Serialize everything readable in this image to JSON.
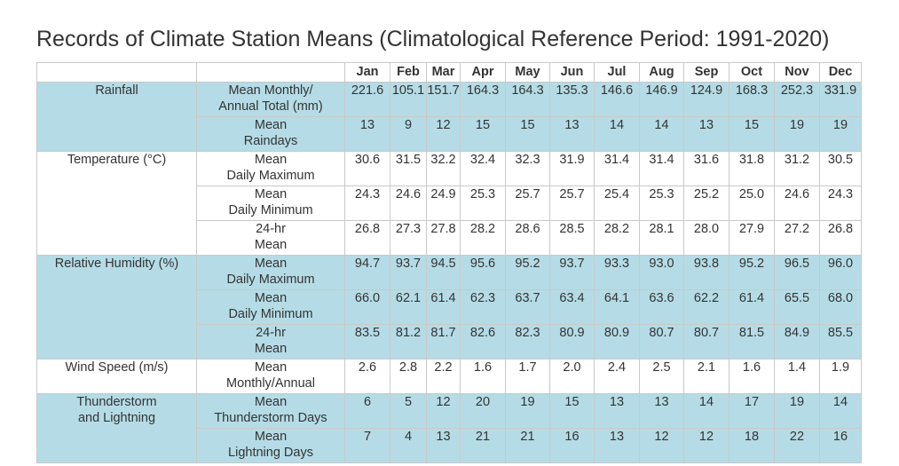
{
  "title": "Records of Climate Station Means (Climatological Reference Period: 1991-2020)",
  "months": [
    "Jan",
    "Feb",
    "Mar",
    "Apr",
    "May",
    "Jun",
    "Jul",
    "Aug",
    "Sep",
    "Oct",
    "Nov",
    "Dec"
  ],
  "colors": {
    "shaded_row": "#b5dce6",
    "grid_line": "#c9c9c9",
    "text": "#333333"
  },
  "groups": [
    {
      "category": "Rainfall",
      "rows": [
        {
          "metric_line1": "Mean Monthly/",
          "metric_line2": "Annual Total (mm)",
          "values": [
            "221.6",
            "105.1",
            "151.7",
            "164.3",
            "164.3",
            "135.3",
            "146.6",
            "146.9",
            "124.9",
            "168.3",
            "252.3",
            "331.9"
          ]
        },
        {
          "metric_line1": "Mean",
          "metric_line2": "Raindays",
          "values": [
            "13",
            "9",
            "12",
            "15",
            "15",
            "13",
            "14",
            "14",
            "13",
            "15",
            "19",
            "19"
          ]
        }
      ]
    },
    {
      "category": "Temperature (°C)",
      "rows": [
        {
          "metric_line1": "Mean",
          "metric_line2": "Daily Maximum",
          "values": [
            "30.6",
            "31.5",
            "32.2",
            "32.4",
            "32.3",
            "31.9",
            "31.4",
            "31.4",
            "31.6",
            "31.8",
            "31.2",
            "30.5"
          ]
        },
        {
          "metric_line1": "Mean",
          "metric_line2": "Daily Minimum",
          "values": [
            "24.3",
            "24.6",
            "24.9",
            "25.3",
            "25.7",
            "25.7",
            "25.4",
            "25.3",
            "25.2",
            "25.0",
            "24.6",
            "24.3"
          ]
        },
        {
          "metric_line1": "24-hr",
          "metric_line2": "Mean",
          "values": [
            "26.8",
            "27.3",
            "27.8",
            "28.2",
            "28.6",
            "28.5",
            "28.2",
            "28.1",
            "28.0",
            "27.9",
            "27.2",
            "26.8"
          ]
        }
      ]
    },
    {
      "category": "Relative Humidity (%)",
      "rows": [
        {
          "metric_line1": "Mean",
          "metric_line2": "Daily Maximum",
          "values": [
            "94.7",
            "93.7",
            "94.5",
            "95.6",
            "95.2",
            "93.7",
            "93.3",
            "93.0",
            "93.8",
            "95.2",
            "96.5",
            "96.0"
          ]
        },
        {
          "metric_line1": "Mean",
          "metric_line2": "Daily Minimum",
          "values": [
            "66.0",
            "62.1",
            "61.4",
            "62.3",
            "63.7",
            "63.4",
            "64.1",
            "63.6",
            "62.2",
            "61.4",
            "65.5",
            "68.0"
          ]
        },
        {
          "metric_line1": "24-hr",
          "metric_line2": "Mean",
          "values": [
            "83.5",
            "81.2",
            "81.7",
            "82.6",
            "82.3",
            "80.9",
            "80.9",
            "80.7",
            "80.7",
            "81.5",
            "84.9",
            "85.5"
          ]
        }
      ]
    },
    {
      "category": "Wind Speed (m/s)",
      "rows": [
        {
          "metric_line1": "Mean",
          "metric_line2": "Monthly/Annual",
          "values": [
            "2.6",
            "2.8",
            "2.2",
            "1.6",
            "1.7",
            "2.0",
            "2.4",
            "2.5",
            "2.1",
            "1.6",
            "1.4",
            "1.9"
          ]
        }
      ]
    },
    {
      "category": "Thunderstorm\nand Lightning",
      "category_line1": "Thunderstorm",
      "category_line2": "and Lightning",
      "rows": [
        {
          "metric_line1": "Mean",
          "metric_line2": "Thunderstorm Days",
          "values": [
            "6",
            "5",
            "12",
            "20",
            "19",
            "15",
            "13",
            "13",
            "14",
            "17",
            "19",
            "14"
          ]
        },
        {
          "metric_line1": "Mean",
          "metric_line2": "Lightning Days",
          "values": [
            "7",
            "4",
            "13",
            "21",
            "21",
            "16",
            "13",
            "12",
            "12",
            "18",
            "22",
            "16"
          ]
        }
      ]
    }
  ]
}
